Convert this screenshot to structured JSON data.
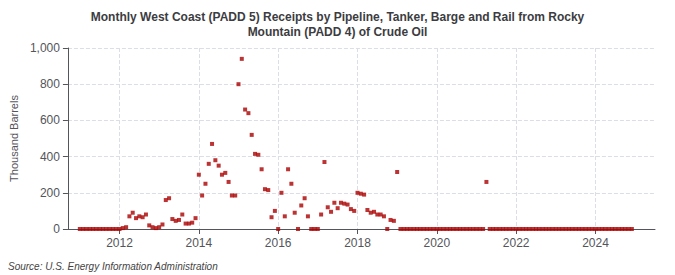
{
  "chart_data": {
    "type": "scatter",
    "title": "Monthly West Coast (PADD 5) Receipts by Pipeline, Tanker, Barge and Rail from Rocky\nMountain (PADD 4) of Crude Oil",
    "ylabel": "Thousand Barrels",
    "annotations": [
      "Source: U.S. Energy Information Administration"
    ],
    "color": "#aa0000",
    "marker": "square",
    "grid": true,
    "xlim": [
      2010.7,
      2025.5
    ],
    "xticks": [
      2012,
      2014,
      2016,
      2018,
      2020,
      2022,
      2024
    ],
    "ylim": [
      0,
      1000
    ],
    "yticks": [
      0,
      200,
      400,
      600,
      800,
      {
        "value": 1000,
        "label": "1,000"
      }
    ],
    "x": [
      2011.0,
      2011.083,
      2011.167,
      2011.25,
      2011.333,
      2011.417,
      2011.5,
      2011.583,
      2011.667,
      2011.75,
      2011.833,
      2011.917,
      2012.0,
      2012.083,
      2012.167,
      2012.25,
      2012.333,
      2012.417,
      2012.5,
      2012.583,
      2012.667,
      2012.75,
      2012.833,
      2012.917,
      2013.0,
      2013.083,
      2013.167,
      2013.25,
      2013.333,
      2013.417,
      2013.5,
      2013.583,
      2013.667,
      2013.75,
      2013.833,
      2013.917,
      2014.0,
      2014.083,
      2014.167,
      2014.25,
      2014.333,
      2014.417,
      2014.5,
      2014.583,
      2014.667,
      2014.75,
      2014.833,
      2014.917,
      2015.0,
      2015.083,
      2015.167,
      2015.25,
      2015.333,
      2015.417,
      2015.5,
      2015.583,
      2015.667,
      2015.75,
      2015.833,
      2015.917,
      2016.0,
      2016.083,
      2016.167,
      2016.25,
      2016.333,
      2016.417,
      2016.5,
      2016.583,
      2016.667,
      2016.75,
      2016.833,
      2016.917,
      2017.0,
      2017.083,
      2017.167,
      2017.25,
      2017.333,
      2017.417,
      2017.5,
      2017.583,
      2017.667,
      2017.75,
      2017.833,
      2017.917,
      2018.0,
      2018.083,
      2018.167,
      2018.25,
      2018.333,
      2018.417,
      2018.5,
      2018.583,
      2018.667,
      2018.75,
      2018.833,
      2018.917,
      2019.0,
      2019.083,
      2019.167,
      2019.25,
      2019.333,
      2019.417,
      2019.5,
      2019.583,
      2019.667,
      2019.75,
      2019.833,
      2019.917,
      2020.0,
      2020.083,
      2020.167,
      2020.25,
      2020.333,
      2020.417,
      2020.5,
      2020.583,
      2020.667,
      2020.75,
      2020.833,
      2020.917,
      2021.0,
      2021.083,
      2021.167,
      2021.25,
      2021.333,
      2021.417,
      2021.5,
      2021.583,
      2021.667,
      2021.75,
      2021.833,
      2021.917,
      2022.0,
      2022.083,
      2022.167,
      2022.25,
      2022.333,
      2022.417,
      2022.5,
      2022.583,
      2022.667,
      2022.75,
      2022.833,
      2022.917,
      2023.0,
      2023.083,
      2023.167,
      2023.25,
      2023.333,
      2023.417,
      2023.5,
      2023.583,
      2023.667,
      2023.75,
      2023.833,
      2023.917,
      2024.0,
      2024.083,
      2024.167,
      2024.25,
      2024.333,
      2024.417,
      2024.5,
      2024.583,
      2024.667,
      2024.75,
      2024.833,
      2024.917
    ],
    "values": [
      0,
      0,
      0,
      0,
      0,
      0,
      0,
      0,
      0,
      0,
      0,
      0,
      0,
      5,
      10,
      70,
      90,
      60,
      70,
      65,
      80,
      20,
      10,
      5,
      10,
      25,
      160,
      170,
      55,
      45,
      50,
      80,
      30,
      30,
      35,
      60,
      300,
      185,
      250,
      360,
      470,
      380,
      350,
      300,
      310,
      260,
      185,
      185,
      800,
      940,
      660,
      640,
      520,
      415,
      410,
      330,
      220,
      215,
      65,
      100,
      0,
      200,
      70,
      330,
      250,
      90,
      0,
      130,
      170,
      70,
      0,
      0,
      0,
      80,
      370,
      120,
      95,
      145,
      115,
      145,
      140,
      135,
      110,
      100,
      200,
      195,
      190,
      105,
      90,
      95,
      80,
      80,
      70,
      0,
      50,
      45,
      315,
      0,
      0,
      0,
      0,
      0,
      0,
      0,
      0,
      0,
      0,
      0,
      0,
      0,
      0,
      0,
      0,
      0,
      0,
      0,
      0,
      0,
      0,
      0,
      0,
      0,
      0,
      260,
      0,
      0,
      0,
      0,
      0,
      0,
      0,
      0,
      0,
      0,
      0,
      0,
      0,
      0,
      0,
      0,
      0,
      0,
      0,
      0,
      0,
      0,
      0,
      0,
      0,
      0,
      0,
      0,
      0,
      0,
      0,
      0,
      0,
      0,
      0,
      0,
      0,
      0,
      0,
      0,
      0,
      0,
      0,
      0
    ]
  }
}
